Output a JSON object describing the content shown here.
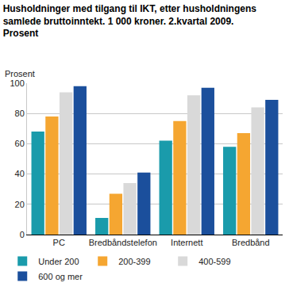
{
  "chart_data": {
    "type": "bar",
    "title": "Husholdninger med tilgang til IKT, etter husholdningens\nsamlede bruttoinntekt. 1 000 kroner. 2.kvartal 2009.\nProsent",
    "y_label": "Prosent",
    "categories": [
      "PC",
      "Bredbåndstelefon",
      "Internett",
      "Bredbånd"
    ],
    "series": [
      {
        "name": "Under 200",
        "color": "#1a9bab",
        "values": [
          68,
          11,
          62,
          58
        ]
      },
      {
        "name": "200-399",
        "color": "#f5a631",
        "values": [
          78,
          27,
          75,
          67
        ]
      },
      {
        "name": "400-599",
        "color": "#d9d9d9",
        "values": [
          94,
          34,
          92,
          84
        ]
      },
      {
        "name": "600 og mer",
        "color": "#1b4f9c",
        "values": [
          98,
          41,
          97,
          89
        ]
      }
    ],
    "ylim": [
      0,
      100
    ],
    "yticks": [
      0,
      20,
      40,
      60,
      80,
      100
    ],
    "grid": true,
    "legend": "bottom"
  }
}
